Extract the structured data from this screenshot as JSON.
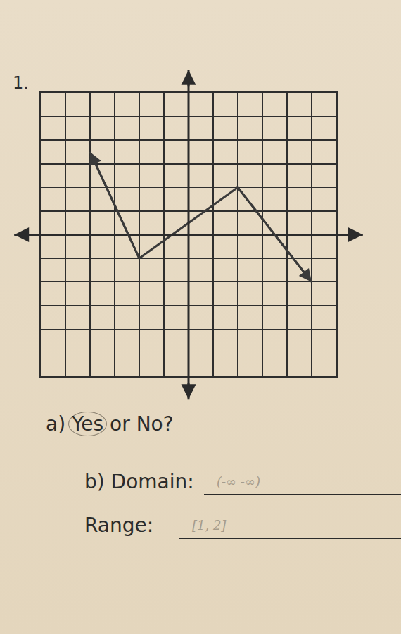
{
  "chart_data": {
    "type": "line",
    "title": "1.",
    "x": [
      -4,
      -2,
      2,
      5
    ],
    "values": [
      3.5,
      -1,
      2,
      -2
    ],
    "color": "#3a3a3a",
    "marker": "arrow",
    "xlim": [
      -6,
      6
    ],
    "ylim": [
      -6,
      6
    ],
    "xticks": [
      -6,
      -5,
      -4,
      -3,
      -2,
      -1,
      0,
      1,
      2,
      3,
      4,
      5,
      6
    ],
    "yticks": [
      -6,
      -5,
      -4,
      -3,
      -2,
      -1,
      0,
      1,
      2,
      3,
      4,
      5,
      6
    ],
    "grid": true,
    "tick_labels": false
  },
  "questions": [
    {
      "text": "a) Yes or No?",
      "circled": "Yes"
    },
    {
      "text": "b) Domain:",
      "answer": "(-∞ -∞)"
    },
    {
      "text": "Range:",
      "answer": "[1, 2]"
    }
  ]
}
